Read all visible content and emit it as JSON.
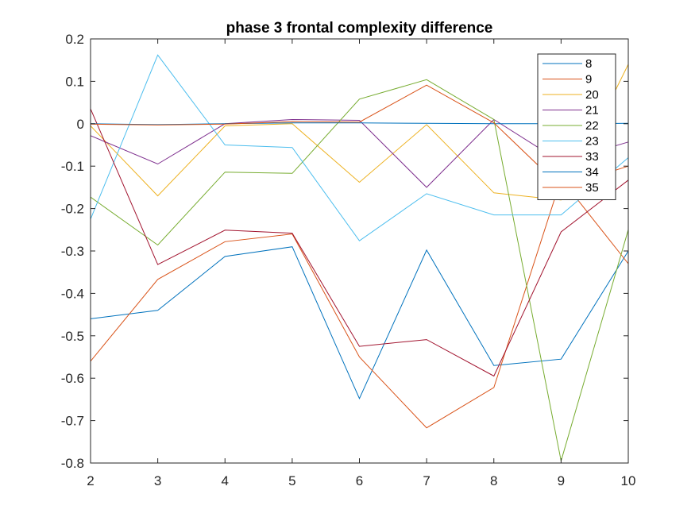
{
  "chart_data": {
    "type": "line",
    "title": "phase 3 frontal complexity difference",
    "xlabel": "",
    "ylabel": "",
    "xlim": [
      2,
      10
    ],
    "ylim": [
      -0.8,
      0.2
    ],
    "x": [
      2,
      3,
      4,
      5,
      6,
      7,
      8,
      9,
      10
    ],
    "xticks": [
      "2",
      "3",
      "4",
      "5",
      "6",
      "7",
      "8",
      "9",
      "10"
    ],
    "yticks": [
      "-0.8",
      "-0.7",
      "-0.6",
      "-0.5",
      "-0.4",
      "-0.3",
      "-0.2",
      "-0.1",
      "0",
      "0.1",
      "0.2"
    ],
    "ytick_values": [
      -0.8,
      -0.7,
      -0.6,
      -0.5,
      -0.4,
      -0.3,
      -0.2,
      -0.1,
      0,
      0.1,
      0.2
    ],
    "grid": false,
    "legend_position": "top-right",
    "series": [
      {
        "name": "8",
        "color": "#0072BD",
        "values": [
          -0.46,
          -0.44,
          -0.313,
          -0.29,
          -0.648,
          -0.298,
          -0.57,
          -0.555,
          -0.3
        ]
      },
      {
        "name": "9",
        "color": "#D95319",
        "values": [
          -0.56,
          -0.367,
          -0.278,
          -0.26,
          -0.55,
          -0.717,
          -0.622,
          -0.13,
          -0.33
        ]
      },
      {
        "name": "20",
        "color": "#EDB120",
        "values": [
          -0.005,
          -0.17,
          -0.005,
          0.0,
          -0.138,
          -0.002,
          -0.163,
          -0.18,
          0.14
        ]
      },
      {
        "name": "21",
        "color": "#7E2F8E",
        "values": [
          -0.028,
          -0.095,
          0.0,
          0.01,
          0.008,
          -0.15,
          0.01,
          -0.09,
          -0.043
        ]
      },
      {
        "name": "22",
        "color": "#77AC30",
        "values": [
          -0.173,
          -0.286,
          -0.114,
          -0.117,
          0.058,
          0.104,
          0.01,
          -0.795,
          -0.25
        ]
      },
      {
        "name": "23",
        "color": "#4DBEEE",
        "values": [
          -0.225,
          0.162,
          -0.05,
          -0.056,
          -0.276,
          -0.165,
          -0.215,
          -0.215,
          -0.08
        ]
      },
      {
        "name": "33",
        "color": "#A2142F",
        "values": [
          0.035,
          -0.332,
          -0.251,
          -0.258,
          -0.525,
          -0.509,
          -0.595,
          -0.255,
          -0.133
        ]
      },
      {
        "name": "34",
        "color": "#0072BD",
        "values": [
          0.0,
          -0.002,
          0.0,
          0.002,
          0.002,
          0.001,
          0.0,
          0.0,
          0.001
        ]
      },
      {
        "name": "35",
        "color": "#D95319",
        "values": [
          -0.001,
          -0.003,
          -0.001,
          0.005,
          0.004,
          0.091,
          0.002,
          -0.15,
          -0.1
        ]
      }
    ]
  }
}
